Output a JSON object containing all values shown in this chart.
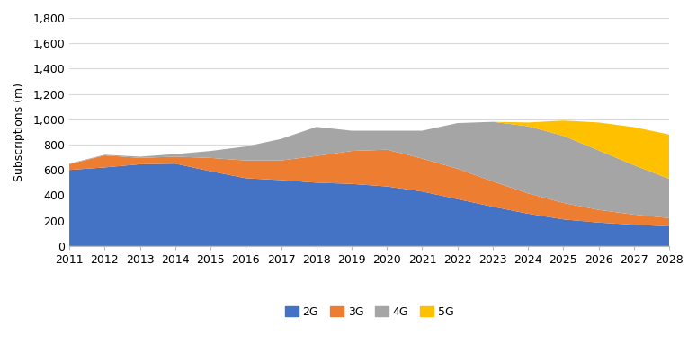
{
  "years": [
    2011,
    2012,
    2013,
    2014,
    2015,
    2016,
    2017,
    2018,
    2019,
    2020,
    2021,
    2022,
    2023,
    2024,
    2025,
    2026,
    2027,
    2028
  ],
  "2G": [
    600,
    620,
    645,
    650,
    590,
    535,
    520,
    500,
    490,
    470,
    430,
    370,
    310,
    255,
    210,
    185,
    168,
    155
  ],
  "3G": [
    45,
    95,
    50,
    55,
    105,
    140,
    155,
    210,
    260,
    290,
    260,
    240,
    200,
    160,
    130,
    100,
    80,
    65
  ],
  "4G": [
    5,
    5,
    10,
    20,
    55,
    110,
    170,
    230,
    160,
    150,
    220,
    360,
    470,
    530,
    530,
    470,
    390,
    310
  ],
  "5G": [
    0,
    0,
    0,
    0,
    0,
    0,
    0,
    0,
    0,
    0,
    0,
    0,
    0,
    30,
    120,
    220,
    300,
    350
  ],
  "colors": {
    "2G": "#4472c4",
    "3G": "#ed7d31",
    "4G": "#a5a5a5",
    "5G": "#ffc000"
  },
  "ylabel": "Subscriptions (m)",
  "ylim": [
    0,
    1800
  ],
  "yticks": [
    0,
    200,
    400,
    600,
    800,
    1000,
    1200,
    1400,
    1600,
    1800
  ],
  "ytick_labels": [
    "0",
    "200",
    "400",
    "600",
    "800",
    "1,000",
    "1,200",
    "1,400",
    "1,600",
    "1,800"
  ],
  "background_color": "#ffffff",
  "grid_color": "#d9d9d9",
  "legend_labels": [
    "2G",
    "3G",
    "4G",
    "5G"
  ]
}
